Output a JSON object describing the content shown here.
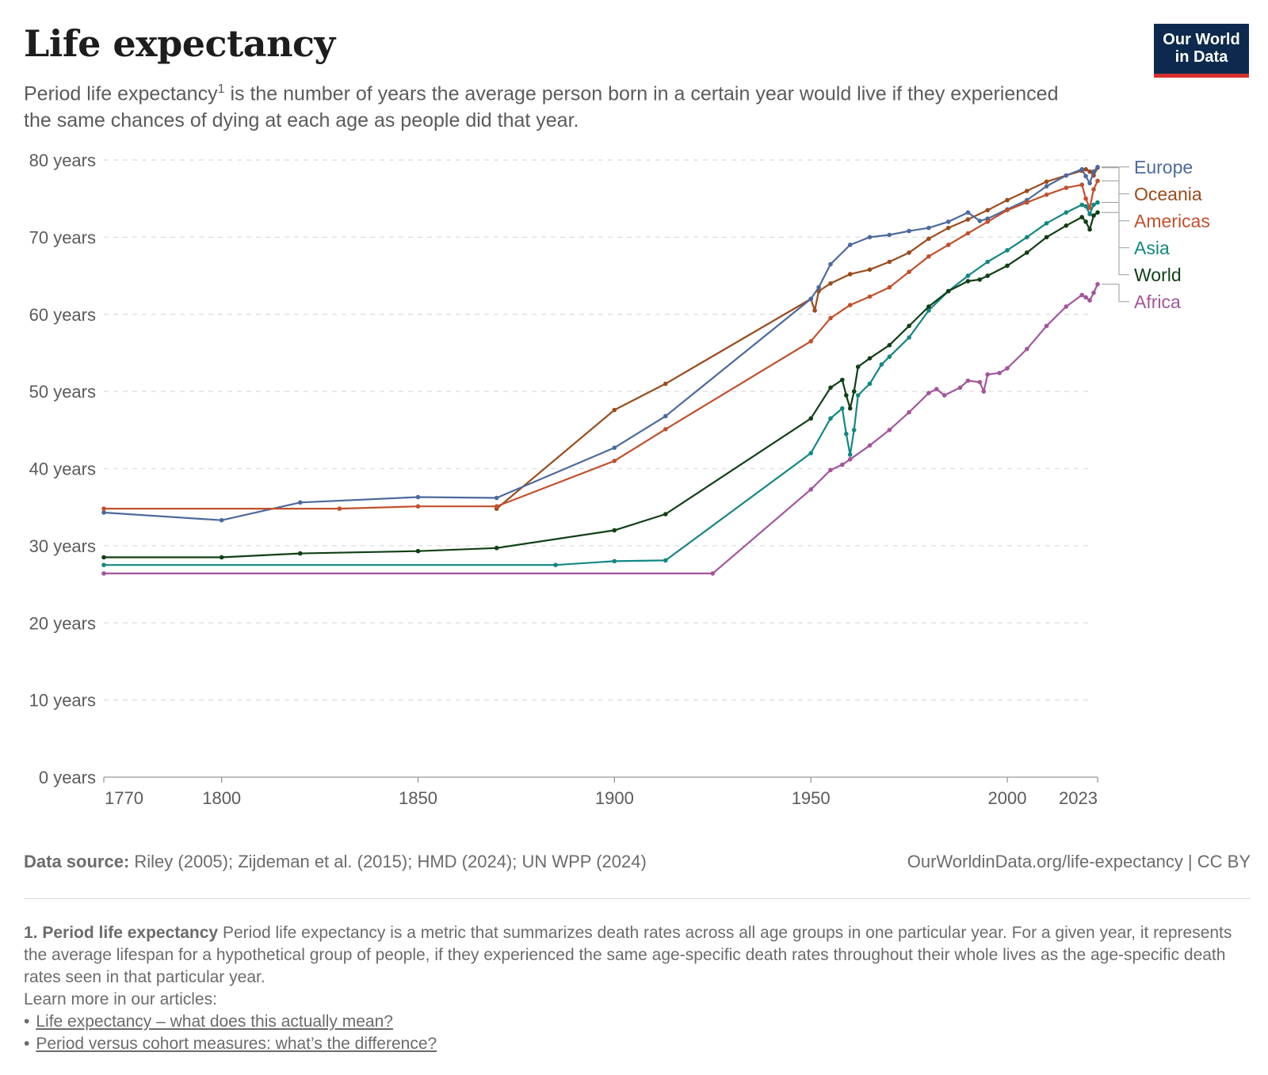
{
  "header": {
    "title": "Life expectancy",
    "subtitle_pre": "Period life expectancy",
    "subtitle_sup": "1",
    "subtitle_post": " is the number of years the average person born in a certain year would live if they experienced the same chances of dying at each age as people did that year."
  },
  "logo": {
    "line1": "Our World",
    "line2": "in Data"
  },
  "chart_data": {
    "type": "line",
    "title": "Life expectancy",
    "yunit": " years",
    "ylim": [
      0,
      80
    ],
    "yticks": [
      0,
      10,
      20,
      30,
      40,
      50,
      60,
      70,
      80
    ],
    "xlim": [
      1770,
      2023
    ],
    "xticks": [
      1770,
      1800,
      1850,
      1900,
      1950,
      2000,
      2023
    ],
    "grid": true,
    "legend": "right",
    "series": [
      {
        "name": "Oceania",
        "color": "#9a4b1c",
        "points": [
          [
            1870,
            34.8
          ],
          [
            1900,
            47.6
          ],
          [
            1913,
            51.0
          ],
          [
            1950,
            62.0
          ],
          [
            1951,
            60.5
          ],
          [
            1952,
            63.0
          ],
          [
            1955,
            64.0
          ],
          [
            1960,
            65.2
          ],
          [
            1965,
            65.8
          ],
          [
            1970,
            66.8
          ],
          [
            1975,
            68.0
          ],
          [
            1980,
            69.8
          ],
          [
            1985,
            71.2
          ],
          [
            1990,
            72.3
          ],
          [
            1995,
            73.5
          ],
          [
            2000,
            74.8
          ],
          [
            2005,
            76.0
          ],
          [
            2010,
            77.2
          ],
          [
            2015,
            78.0
          ],
          [
            2019,
            78.6
          ],
          [
            2020,
            78.8
          ],
          [
            2021,
            78.5
          ],
          [
            2022,
            78.0
          ],
          [
            2023,
            79.0
          ]
        ]
      },
      {
        "name": "Europe",
        "color": "#4c6a9c",
        "points": [
          [
            1770,
            34.3
          ],
          [
            1800,
            33.3
          ],
          [
            1820,
            35.6
          ],
          [
            1850,
            36.3
          ],
          [
            1870,
            36.2
          ],
          [
            1900,
            42.7
          ],
          [
            1913,
            46.8
          ],
          [
            1950,
            62.0
          ],
          [
            1952,
            63.5
          ],
          [
            1955,
            66.5
          ],
          [
            1960,
            69.0
          ],
          [
            1965,
            70.0
          ],
          [
            1970,
            70.3
          ],
          [
            1975,
            70.8
          ],
          [
            1980,
            71.2
          ],
          [
            1985,
            72.0
          ],
          [
            1990,
            73.2
          ],
          [
            1993,
            72.1
          ],
          [
            1995,
            72.4
          ],
          [
            2000,
            73.6
          ],
          [
            2005,
            74.8
          ],
          [
            2010,
            76.6
          ],
          [
            2015,
            78.0
          ],
          [
            2019,
            78.8
          ],
          [
            2020,
            77.9
          ],
          [
            2021,
            77.0
          ],
          [
            2022,
            78.5
          ],
          [
            2023,
            79.1
          ]
        ]
      },
      {
        "name": "Americas",
        "color": "#c2502d",
        "points": [
          [
            1770,
            34.8
          ],
          [
            1830,
            34.8
          ],
          [
            1850,
            35.1
          ],
          [
            1870,
            35.1
          ],
          [
            1900,
            41.0
          ],
          [
            1913,
            45.1
          ],
          [
            1950,
            56.5
          ],
          [
            1955,
            59.5
          ],
          [
            1960,
            61.2
          ],
          [
            1965,
            62.3
          ],
          [
            1970,
            63.5
          ],
          [
            1975,
            65.5
          ],
          [
            1980,
            67.5
          ],
          [
            1985,
            69.0
          ],
          [
            1990,
            70.5
          ],
          [
            1995,
            72.0
          ],
          [
            2000,
            73.5
          ],
          [
            2005,
            74.5
          ],
          [
            2010,
            75.5
          ],
          [
            2015,
            76.4
          ],
          [
            2019,
            76.8
          ],
          [
            2020,
            75.0
          ],
          [
            2021,
            73.8
          ],
          [
            2022,
            76.2
          ],
          [
            2023,
            77.3
          ]
        ]
      },
      {
        "name": "Asia",
        "color": "#138783",
        "points": [
          [
            1770,
            27.5
          ],
          [
            1885,
            27.5
          ],
          [
            1900,
            28.0
          ],
          [
            1913,
            28.1
          ],
          [
            1950,
            42.0
          ],
          [
            1955,
            46.5
          ],
          [
            1958,
            47.8
          ],
          [
            1959,
            44.5
          ],
          [
            1960,
            41.8
          ],
          [
            1961,
            45.0
          ],
          [
            1962,
            49.5
          ],
          [
            1965,
            51.0
          ],
          [
            1968,
            53.5
          ],
          [
            1970,
            54.5
          ],
          [
            1975,
            57.0
          ],
          [
            1980,
            60.5
          ],
          [
            1985,
            63.0
          ],
          [
            1990,
            65.0
          ],
          [
            1995,
            66.8
          ],
          [
            2000,
            68.3
          ],
          [
            2005,
            70.0
          ],
          [
            2010,
            71.8
          ],
          [
            2015,
            73.2
          ],
          [
            2019,
            74.2
          ],
          [
            2020,
            74.0
          ],
          [
            2021,
            73.0
          ],
          [
            2022,
            74.2
          ],
          [
            2023,
            74.5
          ]
        ]
      },
      {
        "name": "World",
        "color": "#103f14",
        "points": [
          [
            1770,
            28.5
          ],
          [
            1800,
            28.5
          ],
          [
            1820,
            29.0
          ],
          [
            1850,
            29.3
          ],
          [
            1870,
            29.7
          ],
          [
            1900,
            32.0
          ],
          [
            1913,
            34.1
          ],
          [
            1950,
            46.5
          ],
          [
            1955,
            50.5
          ],
          [
            1958,
            51.5
          ],
          [
            1959,
            49.5
          ],
          [
            1960,
            47.8
          ],
          [
            1961,
            50.0
          ],
          [
            1962,
            53.2
          ],
          [
            1965,
            54.3
          ],
          [
            1970,
            56.0
          ],
          [
            1975,
            58.5
          ],
          [
            1980,
            61.0
          ],
          [
            1985,
            63.0
          ],
          [
            1990,
            64.3
          ],
          [
            1993,
            64.5
          ],
          [
            1995,
            65.0
          ],
          [
            2000,
            66.3
          ],
          [
            2005,
            68.0
          ],
          [
            2010,
            70.0
          ],
          [
            2015,
            71.5
          ],
          [
            2019,
            72.6
          ],
          [
            2020,
            72.0
          ],
          [
            2021,
            71.0
          ],
          [
            2022,
            72.8
          ],
          [
            2023,
            73.2
          ]
        ]
      },
      {
        "name": "Africa",
        "color": "#a2559c",
        "points": [
          [
            1770,
            26.4
          ],
          [
            1925,
            26.4
          ],
          [
            1950,
            37.3
          ],
          [
            1955,
            39.8
          ],
          [
            1958,
            40.5
          ],
          [
            1960,
            41.2
          ],
          [
            1965,
            43.0
          ],
          [
            1970,
            45.0
          ],
          [
            1975,
            47.3
          ],
          [
            1980,
            49.8
          ],
          [
            1982,
            50.3
          ],
          [
            1984,
            49.5
          ],
          [
            1988,
            50.5
          ],
          [
            1990,
            51.4
          ],
          [
            1993,
            51.2
          ],
          [
            1994,
            50.0
          ],
          [
            1995,
            52.2
          ],
          [
            1998,
            52.4
          ],
          [
            2000,
            53.0
          ],
          [
            2005,
            55.5
          ],
          [
            2010,
            58.5
          ],
          [
            2015,
            61.0
          ],
          [
            2019,
            62.5
          ],
          [
            2020,
            62.2
          ],
          [
            2021,
            61.8
          ],
          [
            2022,
            62.8
          ],
          [
            2023,
            63.9
          ]
        ]
      }
    ]
  },
  "footer": {
    "source_label": "Data source:",
    "source_text": " Riley (2005); Zijdeman et al. (2015); HMD (2024); UN WPP (2024)",
    "credit": "OurWorldinData.org/life-expectancy | CC BY"
  },
  "notes": {
    "note_label": "1. Period life expectancy",
    "note_text": " Period life expectancy is a metric that summarizes death rates across all age groups in one particular year. For a given year, it represents the average lifespan for a hypothetical group of people, if they experienced the same age-specific death rates throughout their whole lives as the age-specific death rates seen in that particular year.",
    "learn_more": "Learn more in our articles:",
    "links": [
      "Life expectancy – what does this actually mean?",
      "Period versus cohort measures: what’s the difference?"
    ]
  }
}
